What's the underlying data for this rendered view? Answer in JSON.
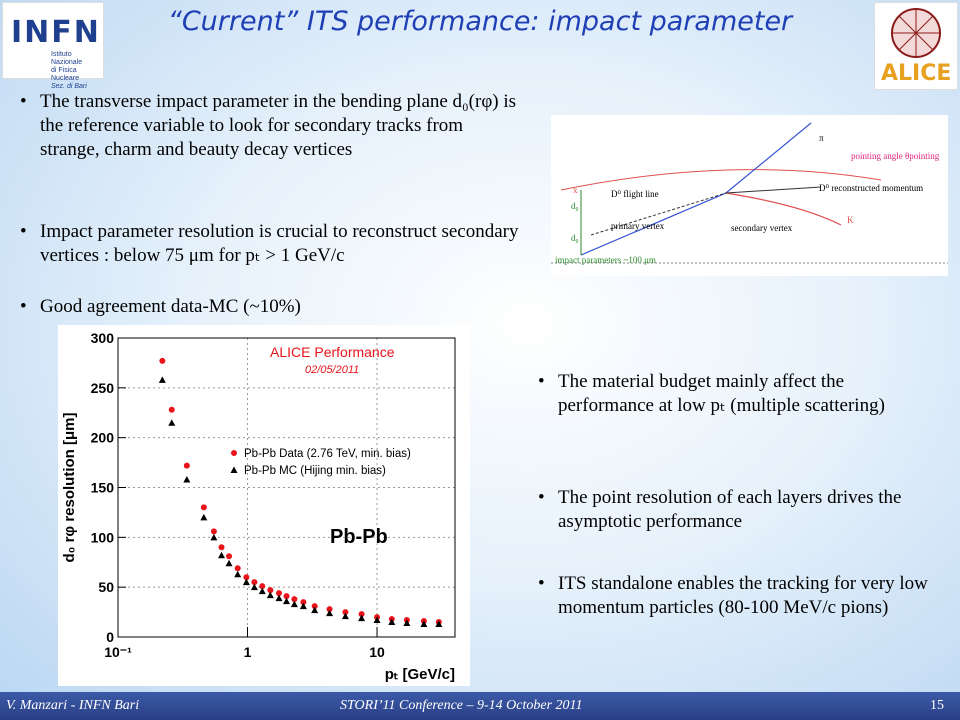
{
  "header": {
    "title": "“Current” ITS performance: impact parameter",
    "logo_left": {
      "name": "INFN",
      "line1": "Istituto Nazionale",
      "line2": "di Fisica Nucleare",
      "line3": "Sez. di Bari"
    },
    "logo_right": {
      "name": "ALICE"
    }
  },
  "bullets_top": [
    "The transverse impact parameter in the bending plane d₀(rφ) is the reference variable to look for secondary tracks from strange, charm and beauty decay vertices",
    "Impact parameter resolution is crucial to reconstruct secondary vertices : below 75 μm for pₜ > 1 GeV/c",
    "Good agreement data-MC (~10%)"
  ],
  "bullets_right": [
    "The material budget mainly affect the performance at low pₜ  (multiple scattering)",
    "The point resolution of each layers drives the asymptotic performance",
    "ITS standalone enables the tracking for very low momentum particles (80-100 MeV/c pions)"
  ],
  "diagram": {
    "labels": [
      "π",
      "pointing angle θpointing",
      "D⁰ flight line",
      "D⁰ reconstructed momentum",
      "K",
      "x",
      "d₀",
      "primary vertex",
      "secondary vertex",
      "d₀",
      "impact parameters ~100 μm"
    ]
  },
  "chart_data": {
    "type": "scatter",
    "ylabel": "d₀ rφ resolution [μm]",
    "xlabel": "pₜ [GeV/c]",
    "annotations": [
      "ALICE Performance",
      "02/05/2011",
      "Pb-Pb"
    ],
    "x": [
      0.22,
      0.26,
      0.34,
      0.46,
      0.55,
      0.63,
      0.72,
      0.84,
      0.98,
      1.13,
      1.3,
      1.5,
      1.75,
      2.0,
      2.3,
      2.7,
      3.3,
      4.3,
      5.7,
      7.6,
      10,
      13,
      17,
      23,
      30
    ],
    "series": [
      {
        "name": "Pb-Pb Data (2.76 TeV, min. bias)",
        "color": "#e8141a",
        "marker": "circle",
        "values": [
          277,
          228,
          172,
          130,
          106,
          90,
          81,
          69,
          60,
          55,
          51,
          47,
          44,
          41,
          38,
          35,
          31,
          28,
          25,
          23,
          20,
          18,
          17,
          16,
          15
        ]
      },
      {
        "name": "Pb-Pb MC (Hijing min. bias)",
        "color": "#000000",
        "marker": "triangle",
        "values": [
          258,
          215,
          158,
          120,
          100,
          82,
          74,
          63,
          55,
          50,
          46,
          42,
          39,
          36,
          33,
          31,
          27,
          24,
          21,
          19,
          17,
          15,
          14,
          13,
          13
        ]
      }
    ],
    "xscale": "log",
    "xlim": [
      0.1,
      40
    ],
    "xticks": [
      {
        "value": 0.1,
        "label": "10⁻¹"
      },
      1,
      10
    ],
    "ylim": [
      0,
      300
    ],
    "yticks": [
      0,
      50,
      100,
      150,
      200,
      250,
      300
    ],
    "grid": true
  },
  "footer": {
    "left": "V. Manzari - INFN Bari",
    "center": "STORI’11 Conference – 9-14 October 2011",
    "page": "15"
  }
}
